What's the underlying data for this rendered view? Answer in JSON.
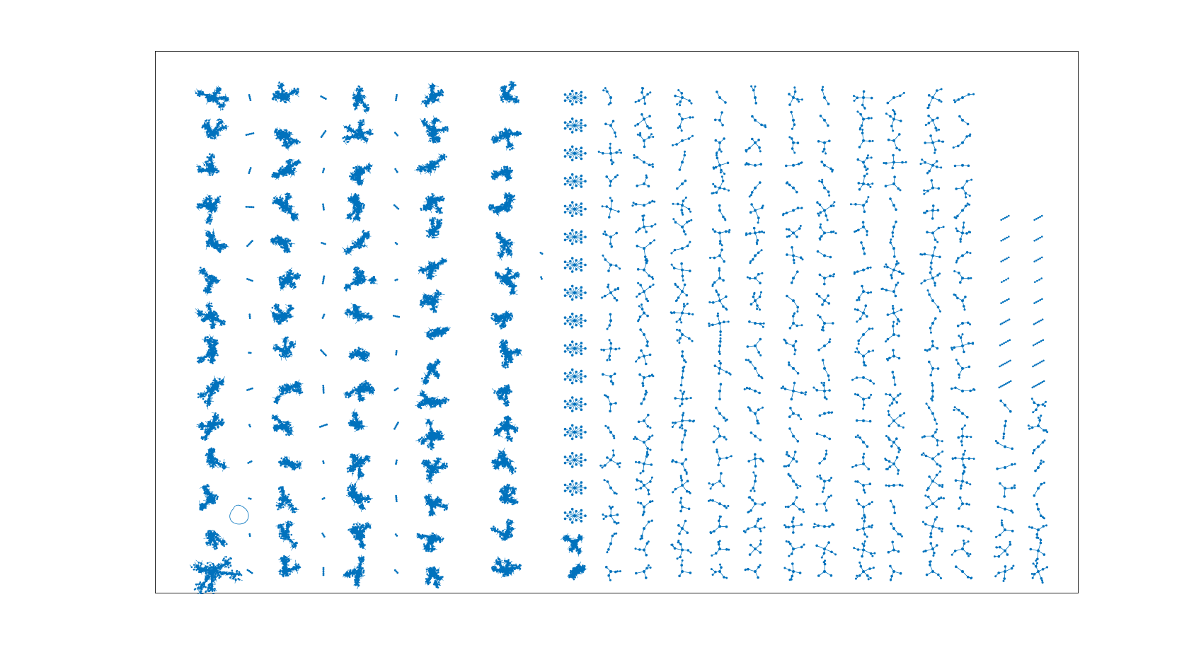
{
  "figure": {
    "title": "",
    "plot_type": "graph-layout-grid",
    "node_color": "#0072BD",
    "edge_color": "#0072BD",
    "frame_color": "#262626",
    "background": "#ffffff"
  },
  "columns": [
    {
      "kind": "large-cluster",
      "components": 14,
      "last_extra_large": true
    },
    {
      "kind": "tiny",
      "components": 14
    },
    {
      "kind": "large-cluster",
      "components": 14
    },
    {
      "kind": "tiny",
      "components": 14
    },
    {
      "kind": "large-cluster",
      "components": 14
    },
    {
      "kind": "tiny",
      "components": 14
    },
    {
      "kind": "large-cluster",
      "components": 15
    },
    {
      "kind": "large-cluster",
      "components": 14
    },
    {
      "kind": "tiny",
      "components": 2
    },
    {
      "kind": "wheel",
      "components": 18,
      "last_two": "large-cluster"
    },
    {
      "kind": "small-tree",
      "components": 18
    },
    {
      "kind": "small-tree",
      "components": 23
    },
    {
      "kind": "small-tree",
      "components": 23
    },
    {
      "kind": "small-tree",
      "components": 22
    },
    {
      "kind": "small-tree",
      "components": 22
    },
    {
      "kind": "small-tree",
      "components": 22
    },
    {
      "kind": "small-tree",
      "components": 22
    },
    {
      "kind": "small-tree",
      "components": 23
    },
    {
      "kind": "small-tree",
      "components": 23
    },
    {
      "kind": "small-tree",
      "components": 22
    },
    {
      "kind": "small-tree",
      "components": 22
    },
    {
      "kind": "chain-then-tree",
      "components": 18
    },
    {
      "kind": "chain-then-tree",
      "components": 18
    }
  ]
}
